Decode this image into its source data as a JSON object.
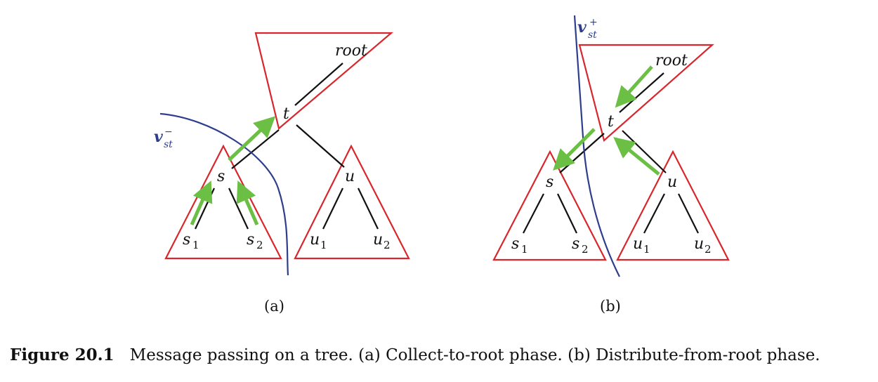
{
  "panel_a": {
    "label": "(a)",
    "nodes": {
      "root": "root",
      "t": "t",
      "s": "s",
      "u": "u",
      "s1_base": "s",
      "s1_sub": "1",
      "s2_base": "s",
      "s2_sub": "2",
      "u1_base": "u",
      "u1_sub": "1",
      "u2_base": "u",
      "u2_sub": "2"
    },
    "separator": {
      "base": "v",
      "sup": "−",
      "sub": "st"
    }
  },
  "panel_b": {
    "label": "(b)",
    "nodes": {
      "root": "root",
      "t": "t",
      "s": "s",
      "u": "u",
      "s1_base": "s",
      "s1_sub": "1",
      "s2_base": "s",
      "s2_sub": "2",
      "u1_base": "u",
      "u1_sub": "1",
      "u2_base": "u",
      "u2_sub": "2"
    },
    "separator": {
      "base": "v",
      "sup": "+",
      "sub": "st"
    }
  },
  "caption": {
    "figure_number": "Figure 20.1",
    "text": "Message passing on a tree. (a) Collect-to-root phase. (b) Distribute-from-root phase."
  },
  "colors": {
    "triangle": "#d8262c",
    "separator": "#2d3f8c",
    "arrow": "#6cbf45",
    "edge": "#111111"
  }
}
